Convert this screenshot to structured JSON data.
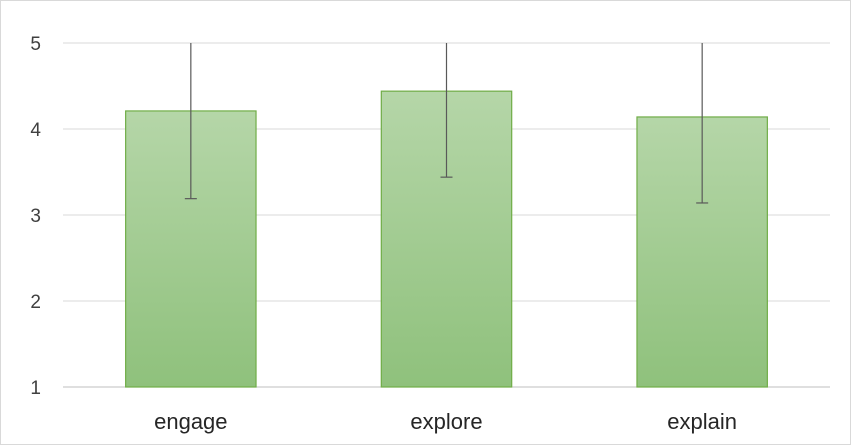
{
  "chart_data": {
    "type": "bar",
    "title": "",
    "xlabel": "",
    "ylabel": "",
    "categories": [
      "engage",
      "explore",
      "explain"
    ],
    "series": [
      {
        "values": [
          4.21,
          4.44,
          4.14
        ],
        "error_minus": [
          1.02,
          1.0,
          1.0
        ],
        "error_plus": [
          1.02,
          1.0,
          1.0
        ]
      }
    ],
    "ylim": [
      1,
      5
    ],
    "yticks": [
      "1",
      "2",
      "3",
      "4",
      "5"
    ],
    "grid": true,
    "legend": "none",
    "colors": {
      "bar_fill_top": "#b5d6a8",
      "bar_fill_bottom": "#8fc17c",
      "bar_stroke": "#70ad47",
      "error_bar": "#595959",
      "gridline": "#d9d9d9"
    }
  }
}
